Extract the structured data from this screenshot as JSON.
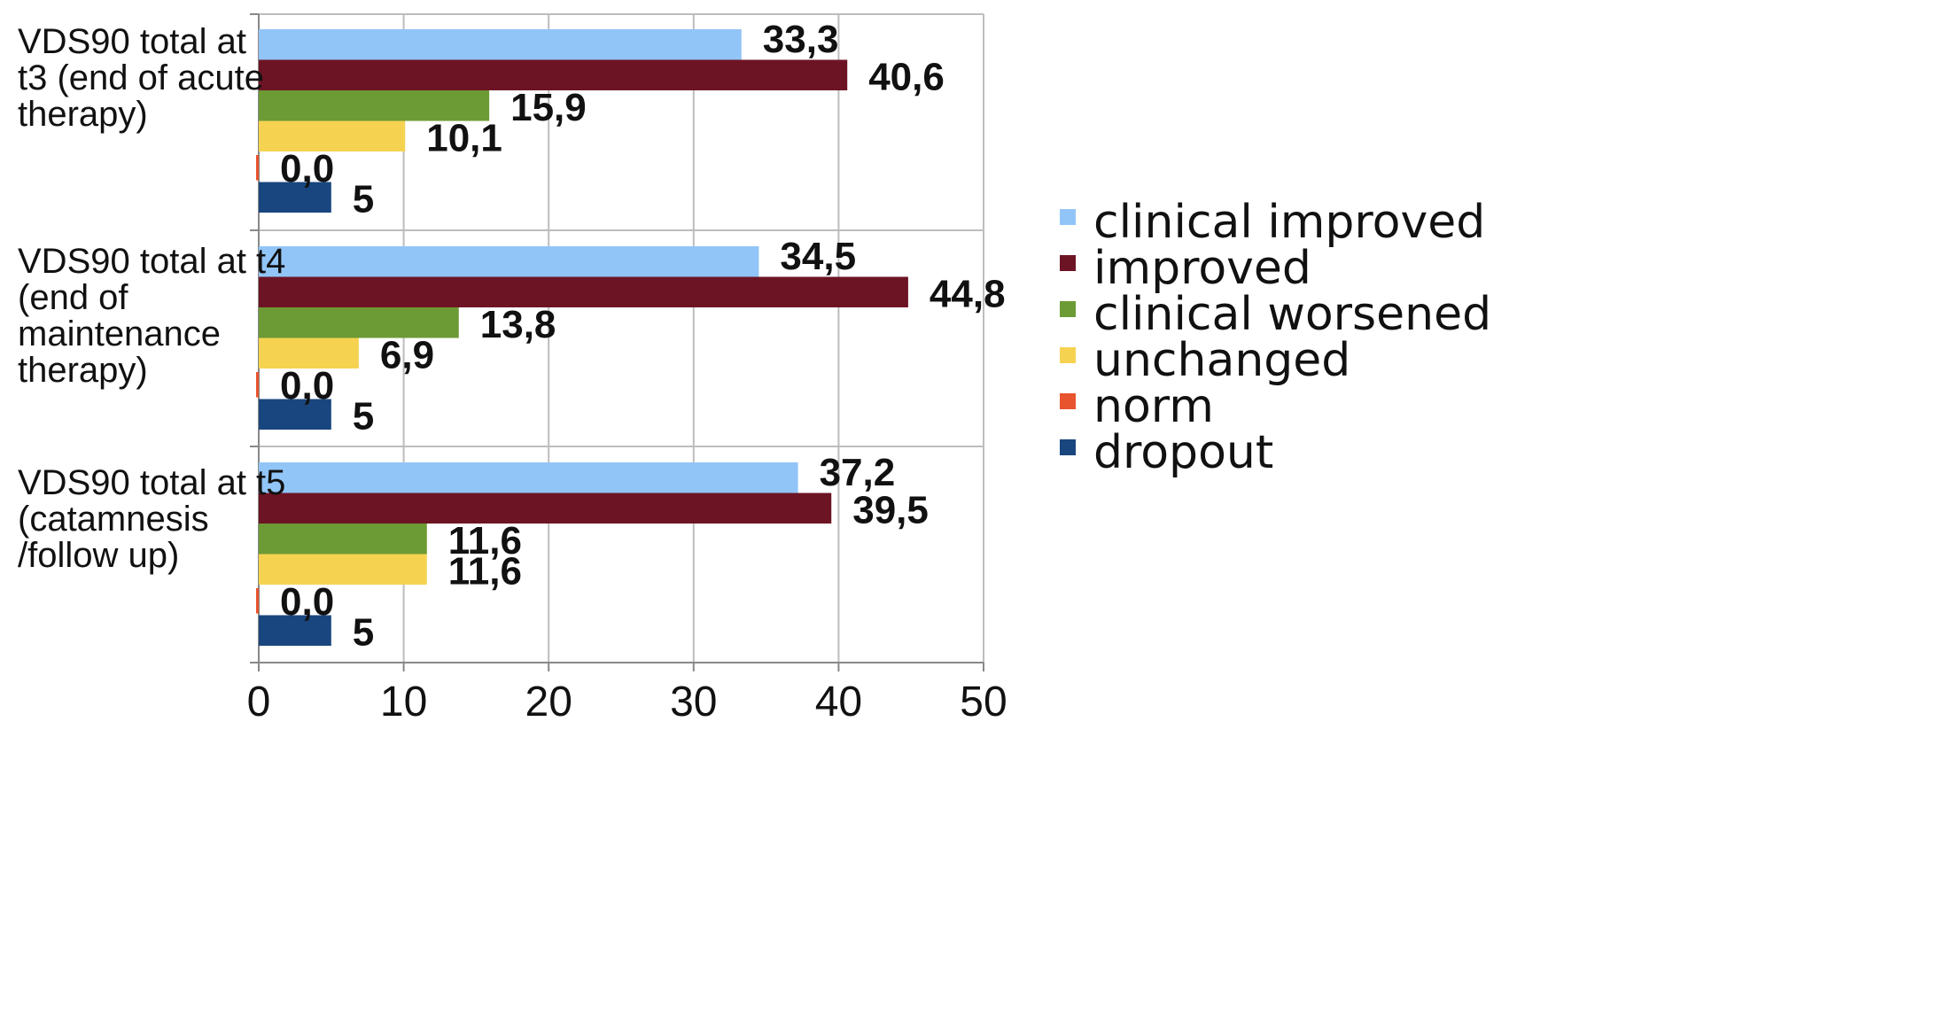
{
  "chart_data": {
    "type": "bar",
    "orientation": "horizontal",
    "title": "",
    "xlabel": "",
    "ylabel": "",
    "xlim": [
      0,
      50
    ],
    "xticks": [
      0,
      10,
      20,
      30,
      40,
      50
    ],
    "grid": "vertical",
    "legend_position": "right",
    "categories": [
      [
        "VDS90  total at",
        "t3 (end of acute",
        "therapy)"
      ],
      [
        "VDS90 total at t4",
        "(end of",
        "maintenance",
        "therapy)"
      ],
      [
        "VDS90 total at t5",
        "(catamnesis",
        "/follow up)"
      ]
    ],
    "series": [
      {
        "name": "clinical improved",
        "color": "#92c5f7",
        "values": [
          33.3,
          34.5,
          37.2
        ],
        "labels": [
          "33,3",
          "34,5",
          "37,2"
        ]
      },
      {
        "name": "improved",
        "color": "#6d1424",
        "values": [
          40.6,
          44.8,
          39.5
        ],
        "labels": [
          "40,6",
          "44,8",
          "39,5"
        ]
      },
      {
        "name": "clinical worsened",
        "color": "#6c9a34",
        "values": [
          15.9,
          13.8,
          11.6
        ],
        "labels": [
          "15,9",
          "13,8",
          "11,6"
        ]
      },
      {
        "name": "unchanged",
        "color": "#f6d251",
        "values": [
          10.1,
          6.9,
          11.6
        ],
        "labels": [
          "10,1",
          "6,9",
          "11,6"
        ]
      },
      {
        "name": "norm",
        "color": "#e8542e",
        "values": [
          0.0,
          0.0,
          0.0
        ],
        "labels": [
          "0,0",
          "0,0",
          "0,0"
        ]
      },
      {
        "name": "dropout",
        "color": "#19467e",
        "values": [
          5,
          5,
          5
        ],
        "labels": [
          "5",
          "5",
          "5"
        ]
      }
    ]
  }
}
